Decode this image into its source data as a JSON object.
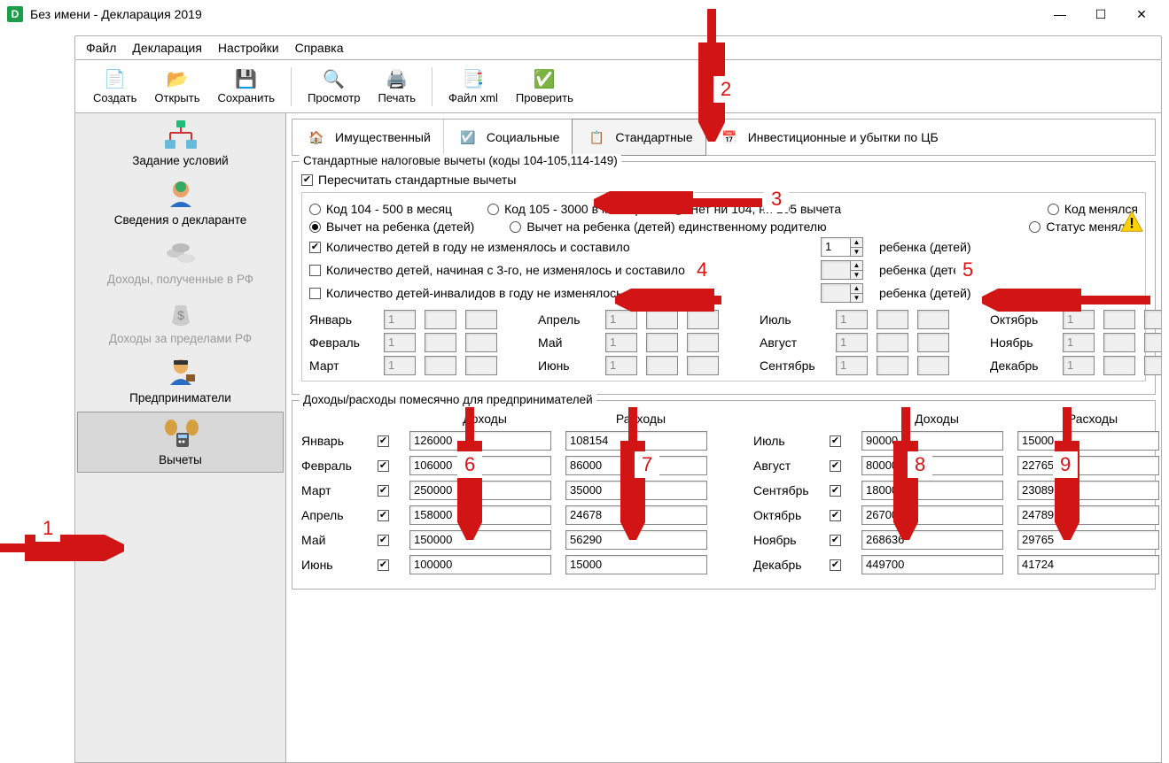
{
  "window": {
    "title": "Без имени - Декларация 2019"
  },
  "menu": {
    "file": "Файл",
    "decl": "Декларация",
    "settings": "Настройки",
    "help": "Справка"
  },
  "toolbar": {
    "create": "Создать",
    "open": "Открыть",
    "save": "Сохранить",
    "preview": "Просмотр",
    "print": "Печать",
    "xml": "Файл xml",
    "check": "Проверить"
  },
  "sidebar": {
    "items": [
      {
        "label": "Задание условий"
      },
      {
        "label": "Сведения о декларанте"
      },
      {
        "label": "Доходы, полученные в РФ"
      },
      {
        "label": "Доходы за пределами РФ"
      },
      {
        "label": "Предприниматели"
      },
      {
        "label": "Вычеты"
      }
    ]
  },
  "deduct_tabs": {
    "property": "Имущественный",
    "social": "Социальные",
    "standard": "Стандартные",
    "invest": "Инвестиционные и убытки по ЦБ"
  },
  "group1": {
    "title": "Стандартные налоговые вычеты (коды 104-105,114-149)",
    "recompute": "Пересчитать стандартные вычеты"
  },
  "codes": {
    "c104": "Код 104 - 500 в месяц",
    "c105": "Код 105 - 3000 в месяц",
    "none": "Нет ни 104, ни 105 вычета",
    "changed": "Код менялся"
  },
  "child": {
    "r1": "Вычет на ребенка (детей)",
    "r2": "Вычет на ребенка (детей) единственному родителю",
    "r3": "Статус менялся"
  },
  "counts": {
    "l1": "Количество детей в году не изменялось и составило",
    "l2": "Количество детей, начиная с 3-го, не изменялось и составило",
    "l3": "Количество детей-инвалидов в году не изменялось и составило",
    "suffix": "ребенка (детей)",
    "v1": "1",
    "v2": "",
    "v3": ""
  },
  "months": {
    "m1": "Январь",
    "m2": "Февраль",
    "m3": "Март",
    "m4": "Апрель",
    "m5": "Май",
    "m6": "Июнь",
    "m7": "Июль",
    "m8": "Август",
    "m9": "Сентябрь",
    "m10": "Октябрь",
    "m11": "Ноябрь",
    "m12": "Декабрь",
    "val": "1"
  },
  "group2_title": "Доходы/расходы помесячно для предпринимателей",
  "ie_hdr": {
    "inc": "Доходы",
    "exp": "Расходы"
  },
  "ie": [
    {
      "m": "Январь",
      "inc": "126000",
      "exp": "108154",
      "m2": "Июль",
      "inc2": "90000",
      "exp2": "15000"
    },
    {
      "m": "Февраль",
      "inc": "106000",
      "exp": "86000",
      "m2": "Август",
      "inc2": "80000",
      "exp2": "22765"
    },
    {
      "m": "Март",
      "inc": "250000",
      "exp": "35000",
      "m2": "Сентябрь",
      "inc2": "180000",
      "exp2": "23089"
    },
    {
      "m": "Апрель",
      "inc": "158000",
      "exp": "24678",
      "m2": "Октябрь",
      "inc2": "267000",
      "exp2": "24789"
    },
    {
      "m": "Май",
      "inc": "150000",
      "exp": "56290",
      "m2": "Ноябрь",
      "inc2": "268636",
      "exp2": "29765"
    },
    {
      "m": "Июнь",
      "inc": "100000",
      "exp": "15000",
      "m2": "Декабрь",
      "inc2": "449700",
      "exp2": "41724"
    }
  ],
  "annotations": {
    "arrow_color": "#d11515",
    "labels": {
      "n1": "1",
      "n2": "2",
      "n3": "3",
      "n4": "4",
      "n5": "5",
      "n6": "6",
      "n7": "7",
      "n8": "8",
      "n9": "9"
    }
  }
}
